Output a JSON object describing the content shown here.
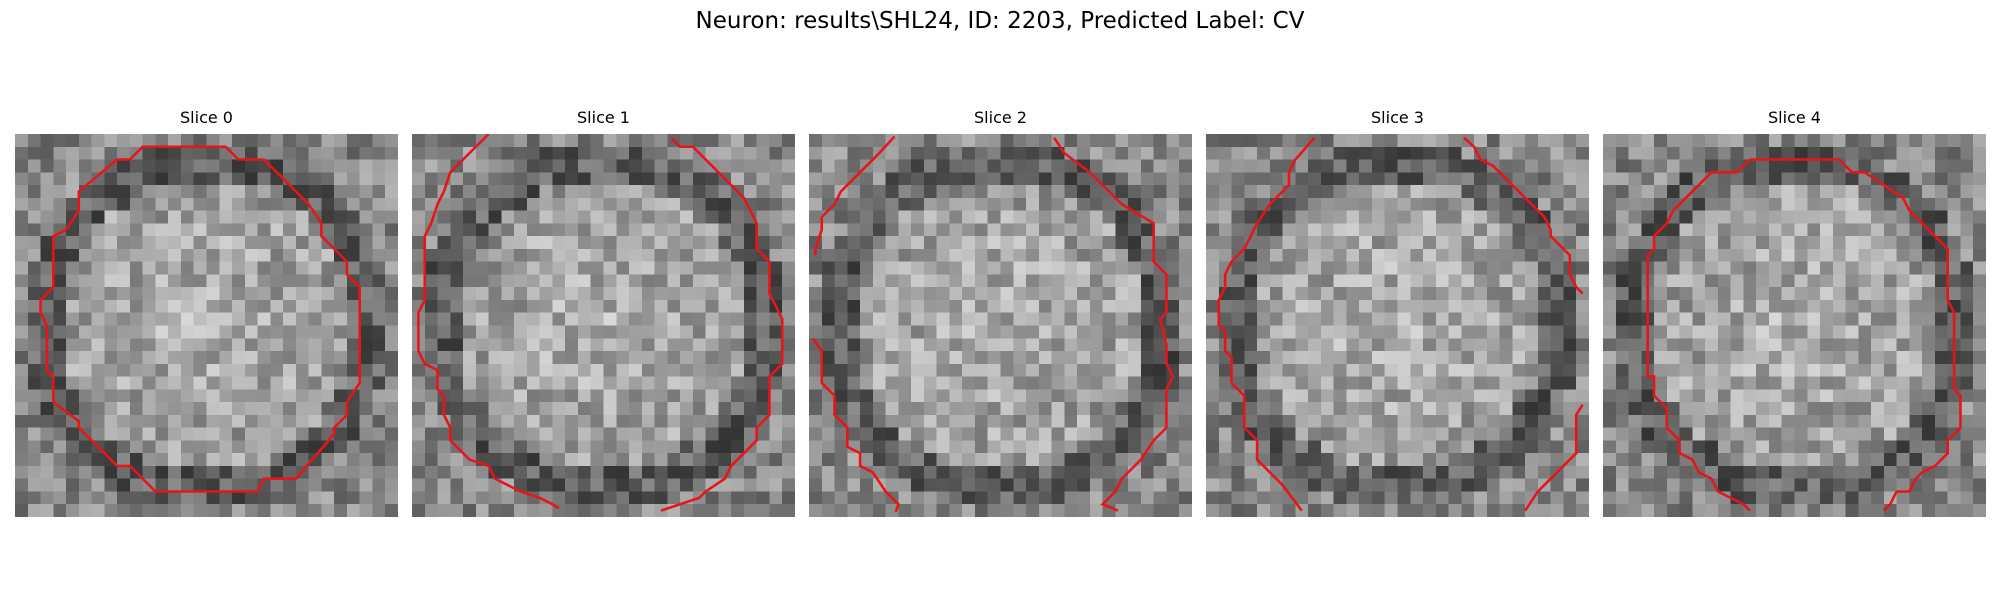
{
  "figure": {
    "title": "Neuron: results\\SHL24, ID: 2203, Predicted Label: CV"
  },
  "panels": [
    {
      "title": "Slice 0",
      "seed": 11,
      "dark_ring": true
    },
    {
      "title": "Slice 1",
      "seed": 23,
      "dark_ring": true
    },
    {
      "title": "Slice 2",
      "seed": 37,
      "dark_ring": true
    },
    {
      "title": "Slice 3",
      "seed": 53,
      "dark_ring": true
    },
    {
      "title": "Slice 4",
      "seed": 71,
      "dark_ring": true
    }
  ],
  "contour_color": "#e8141a"
}
